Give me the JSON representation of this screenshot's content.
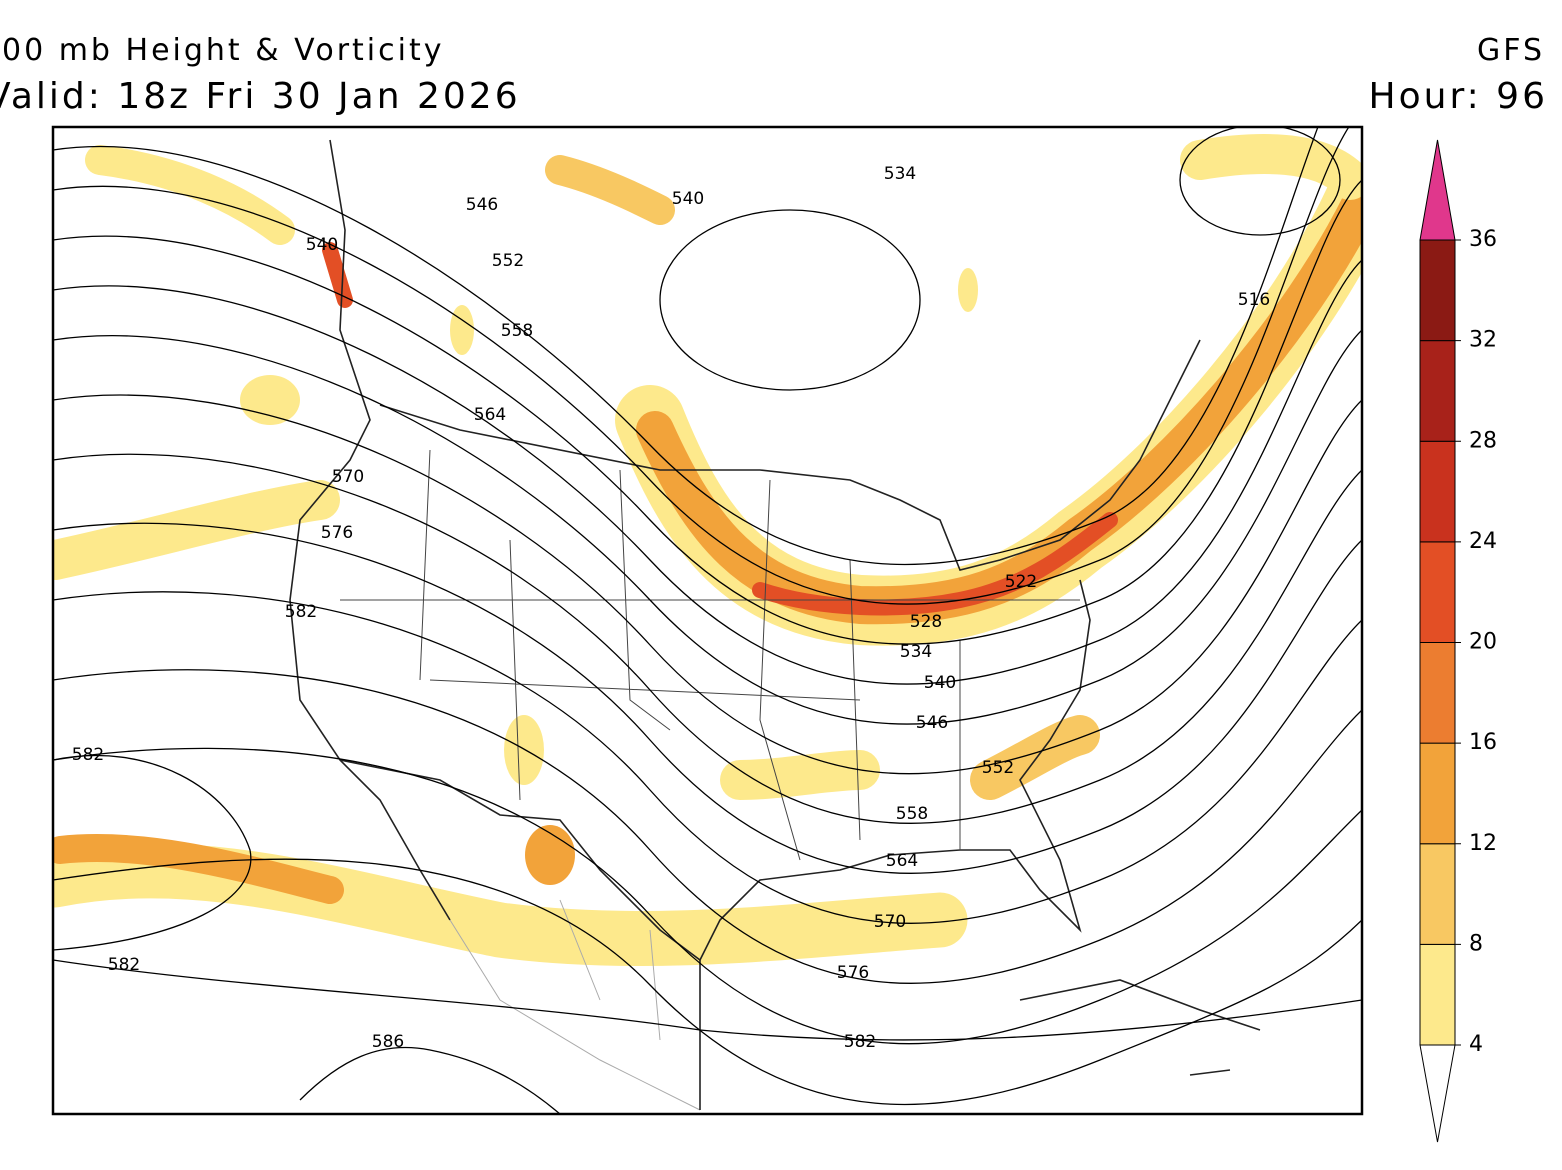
{
  "header": {
    "title": "00 mb Height & Vorticity",
    "valid": "Valid: 18z Fri 30 Jan 2026",
    "model": "GFS",
    "hour": "Hour: 96"
  },
  "contour_labels": [
    "522",
    "528",
    "534",
    "540",
    "546",
    "552",
    "558",
    "564",
    "570",
    "576",
    "582",
    "586",
    "516",
    "540",
    "546",
    "552",
    "558",
    "564",
    "570",
    "576",
    "582",
    "582",
    "582",
    "534",
    "540"
  ],
  "colorbar": {
    "ticks": [
      4,
      8,
      12,
      16,
      20,
      24,
      28,
      32,
      36
    ],
    "colors": [
      "#fde98c",
      "#f8c862",
      "#f2a33a",
      "#ec7d30",
      "#e34f25",
      "#c9321e",
      "#a8221a",
      "#8b1a14"
    ],
    "over_color": "#e0378c",
    "under_color": "#ffffff"
  }
}
